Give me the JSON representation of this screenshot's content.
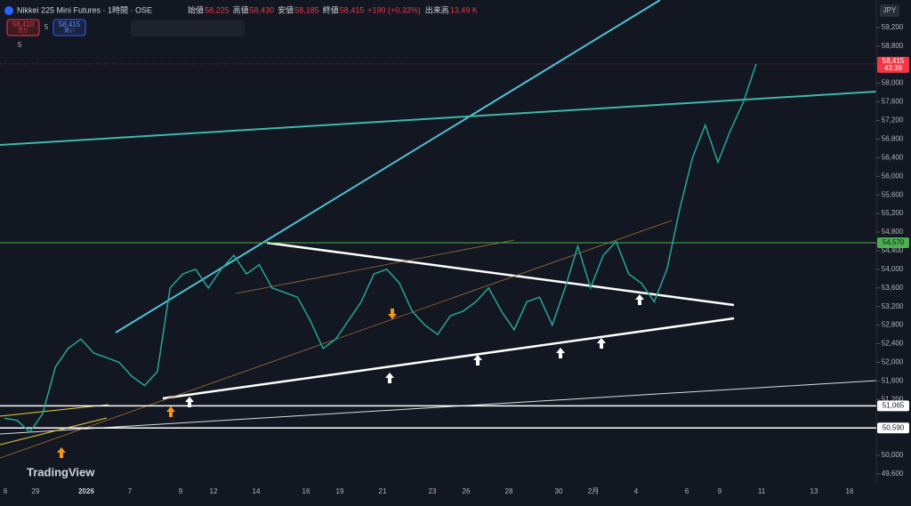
{
  "header": {
    "symbol": "Nikkei 225 Mini Futures · 1時間 · OSE",
    "ohlc": [
      {
        "label": "始値",
        "value": "58,225"
      },
      {
        "label": "高値",
        "value": "58,430"
      },
      {
        "label": "安値",
        "value": "58,185"
      },
      {
        "label": "終値",
        "value": "58,415"
      }
    ],
    "change": "+190 (+0.33%)",
    "volume_label": "出来高",
    "volume": "13.49 K"
  },
  "trade": {
    "sell_price": "58,410",
    "sell_label": "売り",
    "spread": "5",
    "buy_price": "58,415",
    "buy_label": "買い"
  },
  "indicators_count": "5",
  "currency": "JPY",
  "logo": "TradingView",
  "chart_data": {
    "type": "line",
    "color": "#26a69a",
    "values": [
      50800,
      50750,
      50500,
      50900,
      51900,
      52300,
      52500,
      52200,
      52100,
      52000,
      51700,
      51500,
      51800,
      53600,
      53900,
      54000,
      53600,
      54000,
      54300,
      53900,
      54100,
      53600,
      53500,
      53400,
      52900,
      52300,
      52500,
      52900,
      53300,
      53900,
      54000,
      53700,
      53100,
      52800,
      52600,
      53000,
      53100,
      53300,
      53600,
      53100,
      52700,
      53300,
      53400,
      52800,
      53600,
      54500,
      53600,
      54300,
      54600,
      53900,
      53700,
      53300,
      54000,
      55300,
      56400,
      57100,
      56300,
      57000,
      57600,
      58415
    ],
    "ylim": [
      49370,
      59790
    ],
    "yticks": [
      {
        "value": 59200,
        "label": "59,200"
      },
      {
        "value": 58800,
        "label": "58,800"
      },
      {
        "value": 58000,
        "label": "58,000"
      },
      {
        "value": 57600,
        "label": "57,600"
      },
      {
        "value": 57200,
        "label": "57,200"
      },
      {
        "value": 56800,
        "label": "56,800"
      },
      {
        "value": 56400,
        "label": "56,400"
      },
      {
        "value": 56000,
        "label": "56,000"
      },
      {
        "value": 55600,
        "label": "55,600"
      },
      {
        "value": 55200,
        "label": "55,200"
      },
      {
        "value": 54800,
        "label": "54,800"
      },
      {
        "value": 54400,
        "label": "54,400"
      },
      {
        "value": 54000,
        "label": "54,000"
      },
      {
        "value": 53600,
        "label": "53,600"
      },
      {
        "value": 53200,
        "label": "53,200"
      },
      {
        "value": 52800,
        "label": "52,800"
      },
      {
        "value": 52400,
        "label": "52,400"
      },
      {
        "value": 52000,
        "label": "52,000"
      },
      {
        "value": 51600,
        "label": "51,600"
      },
      {
        "value": 51200,
        "label": "51,200"
      },
      {
        "value": 50000,
        "label": "50,000"
      },
      {
        "value": 49600,
        "label": "49,600"
      }
    ],
    "xlabels": [
      "6",
      "29",
      "2026",
      "7",
      "9",
      "12",
      "14",
      "16",
      "19",
      "21",
      "23",
      "26",
      "28",
      "30",
      "2月",
      "4",
      "6",
      "9",
      "11",
      "13",
      "16"
    ],
    "price_lines": [
      {
        "value": 54570,
        "label": "54,570",
        "color": "#4caf50"
      },
      {
        "value": 51065,
        "label": "51,065",
        "color": "#ffffff"
      },
      {
        "value": 50590,
        "label": "50,590",
        "color": "#ffffff"
      }
    ],
    "last_price": {
      "value": 58415,
      "label": "58,415",
      "countdown": "43:39",
      "color": "#f23645"
    }
  }
}
